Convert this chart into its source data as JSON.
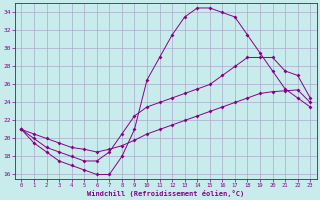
{
  "xlabel": "Windchill (Refroidissement éolien,°C)",
  "bg_color": "#c8ecec",
  "grid_color": "#aaaacc",
  "line_color": "#880088",
  "xlim": [
    -0.5,
    23.5
  ],
  "ylim": [
    15.5,
    35.0
  ],
  "yticks": [
    16,
    18,
    20,
    22,
    24,
    26,
    28,
    30,
    32,
    34
  ],
  "xticks": [
    0,
    1,
    2,
    3,
    4,
    5,
    6,
    7,
    8,
    9,
    10,
    11,
    12,
    13,
    14,
    15,
    16,
    17,
    18,
    19,
    20,
    21,
    22,
    23
  ],
  "curve1_x": [
    0,
    1,
    2,
    3,
    4,
    5,
    6,
    7,
    8,
    9,
    10,
    11,
    12,
    13,
    14,
    15,
    16,
    17,
    18,
    19,
    20,
    21,
    22,
    23
  ],
  "curve1_y": [
    21,
    19.5,
    18.5,
    17.5,
    17.0,
    16.5,
    16.0,
    16.0,
    18.0,
    21.0,
    26.5,
    29.0,
    31.5,
    33.5,
    34.5,
    34.5,
    34.0,
    33.5,
    31.5,
    29.5,
    27.5,
    25.5,
    24.5,
    23.5
  ],
  "curve2_x": [
    0,
    1,
    2,
    3,
    4,
    5,
    6,
    7,
    8,
    9,
    10,
    11,
    12,
    13,
    14,
    15,
    16,
    17,
    18,
    19,
    20,
    21,
    22,
    23
  ],
  "curve2_y": [
    21,
    20.0,
    19.0,
    18.5,
    18.0,
    17.5,
    17.5,
    18.5,
    20.5,
    22.5,
    23.5,
    24.0,
    24.5,
    25.0,
    25.5,
    26.0,
    27.0,
    28.0,
    29.0,
    29.0,
    29.0,
    27.5,
    27.0,
    24.5
  ],
  "curve3_x": [
    0,
    1,
    2,
    3,
    4,
    5,
    6,
    7,
    8,
    9,
    10,
    11,
    12,
    13,
    14,
    15,
    16,
    17,
    18,
    19,
    20,
    21,
    22,
    23
  ],
  "curve3_y": [
    21,
    20.5,
    20.0,
    19.5,
    19.0,
    18.8,
    18.5,
    18.8,
    19.2,
    19.8,
    20.5,
    21.0,
    21.5,
    22.0,
    22.5,
    23.0,
    23.5,
    24.0,
    24.5,
    25.0,
    25.2,
    25.3,
    25.4,
    24.0
  ]
}
